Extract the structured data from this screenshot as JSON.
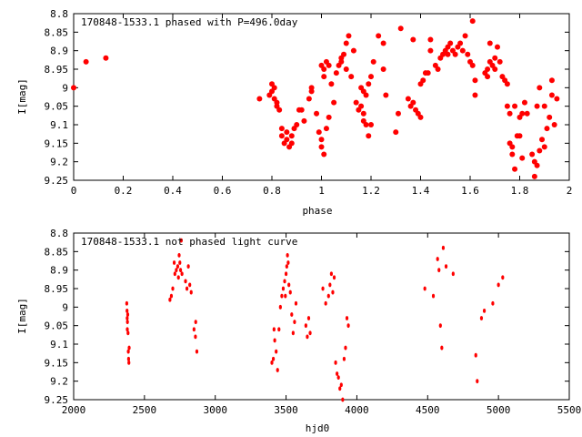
{
  "chart_data": [
    {
      "type": "scatter",
      "title": "170848-1533.1 phased with P=496.0day",
      "xlabel": "phase",
      "ylabel": "I[mag]",
      "xlim": [
        0,
        2
      ],
      "ylim": [
        9.25,
        8.8
      ],
      "y_inverted": true,
      "x_ticks": [
        "0",
        "0.2",
        "0.4",
        "0.6",
        "0.8",
        "1",
        "1.2",
        "1.4",
        "1.6",
        "1.8",
        "2"
      ],
      "y_ticks": [
        "8.8",
        "8.85",
        "8.9",
        "8.95",
        "9",
        "9.05",
        "9.1",
        "9.15",
        "9.2",
        "9.25"
      ],
      "marker_color": "#ff0000",
      "points": [
        [
          0.0,
          9.0
        ],
        [
          0.05,
          8.93
        ],
        [
          0.13,
          8.92
        ],
        [
          0.75,
          9.03
        ],
        [
          0.79,
          9.02
        ],
        [
          0.8,
          8.99
        ],
        [
          0.8,
          9.01
        ],
        [
          0.81,
          9.0
        ],
        [
          0.81,
          9.03
        ],
        [
          0.82,
          9.04
        ],
        [
          0.82,
          9.05
        ],
        [
          0.83,
          9.06
        ],
        [
          0.84,
          9.11
        ],
        [
          0.84,
          9.13
        ],
        [
          0.85,
          9.15
        ],
        [
          0.86,
          9.12
        ],
        [
          0.86,
          9.14
        ],
        [
          0.87,
          9.16
        ],
        [
          0.88,
          9.13
        ],
        [
          0.88,
          9.15
        ],
        [
          0.89,
          9.11
        ],
        [
          0.9,
          9.1
        ],
        [
          0.91,
          9.06
        ],
        [
          0.92,
          9.06
        ],
        [
          0.93,
          9.09
        ],
        [
          0.95,
          9.03
        ],
        [
          0.96,
          9.0
        ],
        [
          0.96,
          9.01
        ],
        [
          0.98,
          9.07
        ],
        [
          0.99,
          9.12
        ],
        [
          1.0,
          9.14
        ],
        [
          1.0,
          9.16
        ],
        [
          1.01,
          9.18
        ],
        [
          1.02,
          9.11
        ],
        [
          1.03,
          9.08
        ],
        [
          1.0,
          8.94
        ],
        [
          1.01,
          8.95
        ],
        [
          1.01,
          8.97
        ],
        [
          1.02,
          8.93
        ],
        [
          1.03,
          8.94
        ],
        [
          1.04,
          8.99
        ],
        [
          1.05,
          9.04
        ],
        [
          1.06,
          8.96
        ],
        [
          1.07,
          8.94
        ],
        [
          1.08,
          8.93
        ],
        [
          1.08,
          8.92
        ],
        [
          1.09,
          8.91
        ],
        [
          1.1,
          8.88
        ],
        [
          1.1,
          8.95
        ],
        [
          1.11,
          8.86
        ],
        [
          1.12,
          8.97
        ],
        [
          1.13,
          8.9
        ],
        [
          1.14,
          9.04
        ],
        [
          1.15,
          9.06
        ],
        [
          1.16,
          9.05
        ],
        [
          1.17,
          9.07
        ],
        [
          1.17,
          9.09
        ],
        [
          1.18,
          9.1
        ],
        [
          1.19,
          9.13
        ],
        [
          1.2,
          9.1
        ],
        [
          1.16,
          9.0
        ],
        [
          1.17,
          9.01
        ],
        [
          1.18,
          9.02
        ],
        [
          1.19,
          8.99
        ],
        [
          1.2,
          8.97
        ],
        [
          1.21,
          8.93
        ],
        [
          1.23,
          8.86
        ],
        [
          1.25,
          8.88
        ],
        [
          1.25,
          8.95
        ],
        [
          1.26,
          9.02
        ],
        [
          1.3,
          9.12
        ],
        [
          1.31,
          9.07
        ],
        [
          1.32,
          8.84
        ],
        [
          1.35,
          9.03
        ],
        [
          1.36,
          9.05
        ],
        [
          1.37,
          9.04
        ],
        [
          1.37,
          8.87
        ],
        [
          1.38,
          9.06
        ],
        [
          1.39,
          9.07
        ],
        [
          1.4,
          9.08
        ],
        [
          1.4,
          8.99
        ],
        [
          1.41,
          8.98
        ],
        [
          1.42,
          8.96
        ],
        [
          1.43,
          8.96
        ],
        [
          1.44,
          8.87
        ],
        [
          1.44,
          8.9
        ],
        [
          1.46,
          8.94
        ],
        [
          1.47,
          8.95
        ],
        [
          1.48,
          8.92
        ],
        [
          1.49,
          8.91
        ],
        [
          1.5,
          8.9
        ],
        [
          1.51,
          8.89
        ],
        [
          1.51,
          8.91
        ],
        [
          1.52,
          8.88
        ],
        [
          1.53,
          8.9
        ],
        [
          1.54,
          8.91
        ],
        [
          1.55,
          8.89
        ],
        [
          1.56,
          8.88
        ],
        [
          1.57,
          8.9
        ],
        [
          1.58,
          8.86
        ],
        [
          1.59,
          8.91
        ],
        [
          1.6,
          8.93
        ],
        [
          1.61,
          8.82
        ],
        [
          1.61,
          8.94
        ],
        [
          1.62,
          8.98
        ],
        [
          1.62,
          9.02
        ],
        [
          1.66,
          8.96
        ],
        [
          1.67,
          8.95
        ],
        [
          1.67,
          8.97
        ],
        [
          1.68,
          8.93
        ],
        [
          1.68,
          8.88
        ],
        [
          1.69,
          8.94
        ],
        [
          1.7,
          8.92
        ],
        [
          1.7,
          8.95
        ],
        [
          1.71,
          8.89
        ],
        [
          1.72,
          8.93
        ],
        [
          1.73,
          8.97
        ],
        [
          1.74,
          8.98
        ],
        [
          1.75,
          8.99
        ],
        [
          1.75,
          9.05
        ],
        [
          1.76,
          9.07
        ],
        [
          1.76,
          9.15
        ],
        [
          1.77,
          9.16
        ],
        [
          1.77,
          9.18
        ],
        [
          1.78,
          9.22
        ],
        [
          1.78,
          9.05
        ],
        [
          1.79,
          9.13
        ],
        [
          1.8,
          9.08
        ],
        [
          1.8,
          9.13
        ],
        [
          1.81,
          9.07
        ],
        [
          1.81,
          9.19
        ],
        [
          1.82,
          9.04
        ],
        [
          1.83,
          9.07
        ],
        [
          1.85,
          9.18
        ],
        [
          1.86,
          9.2
        ],
        [
          1.86,
          9.24
        ],
        [
          1.87,
          9.05
        ],
        [
          1.87,
          9.21
        ],
        [
          1.88,
          9.0
        ],
        [
          1.88,
          9.17
        ],
        [
          1.89,
          9.14
        ],
        [
          1.9,
          9.05
        ],
        [
          1.9,
          9.16
        ],
        [
          1.91,
          9.11
        ],
        [
          1.92,
          9.08
        ],
        [
          1.93,
          8.98
        ],
        [
          1.93,
          9.02
        ],
        [
          1.94,
          9.1
        ],
        [
          1.95,
          9.03
        ]
      ]
    },
    {
      "type": "scatter",
      "title": "170848-1533.1 not phased light curve",
      "xlabel": "hjd0",
      "ylabel": "I[mag]",
      "xlim": [
        2000,
        5500
      ],
      "ylim": [
        9.25,
        8.8
      ],
      "y_inverted": true,
      "x_ticks": [
        "2000",
        "2500",
        "3000",
        "3500",
        "4000",
        "4500",
        "5000",
        "5500"
      ],
      "y_ticks": [
        "8.8",
        "8.85",
        "8.9",
        "8.95",
        "9",
        "9.05",
        "9.1",
        "9.15",
        "9.2",
        "9.25"
      ],
      "marker_color": "#ff0000",
      "points": [
        [
          2375,
          8.99
        ],
        [
          2377,
          9.01
        ],
        [
          2378,
          9.03
        ],
        [
          2379,
          9.06
        ],
        [
          2380,
          9.04
        ],
        [
          2382,
          9.02
        ],
        [
          2384,
          9.07
        ],
        [
          2386,
          9.12
        ],
        [
          2388,
          9.14
        ],
        [
          2390,
          9.15
        ],
        [
          2392,
          9.11
        ],
        [
          2680,
          8.98
        ],
        [
          2690,
          8.97
        ],
        [
          2700,
          8.95
        ],
        [
          2710,
          8.88
        ],
        [
          2715,
          8.91
        ],
        [
          2725,
          8.9
        ],
        [
          2735,
          8.89
        ],
        [
          2740,
          8.92
        ],
        [
          2745,
          8.86
        ],
        [
          2750,
          8.88
        ],
        [
          2755,
          8.9
        ],
        [
          2760,
          8.82
        ],
        [
          2765,
          8.91
        ],
        [
          2790,
          8.93
        ],
        [
          2800,
          8.95
        ],
        [
          2810,
          8.89
        ],
        [
          2820,
          8.94
        ],
        [
          2830,
          8.96
        ],
        [
          2850,
          9.06
        ],
        [
          2860,
          9.08
        ],
        [
          2862,
          9.04
        ],
        [
          2870,
          9.12
        ],
        [
          3400,
          9.15
        ],
        [
          3410,
          9.14
        ],
        [
          3415,
          9.06
        ],
        [
          3420,
          9.09
        ],
        [
          3430,
          9.12
        ],
        [
          3440,
          9.17
        ],
        [
          3450,
          9.06
        ],
        [
          3460,
          9.0
        ],
        [
          3470,
          8.97
        ],
        [
          3480,
          8.95
        ],
        [
          3490,
          8.93
        ],
        [
          3495,
          8.97
        ],
        [
          3500,
          8.91
        ],
        [
          3505,
          8.89
        ],
        [
          3510,
          8.86
        ],
        [
          3515,
          8.88
        ],
        [
          3520,
          8.94
        ],
        [
          3530,
          8.96
        ],
        [
          3540,
          9.02
        ],
        [
          3550,
          9.07
        ],
        [
          3560,
          9.04
        ],
        [
          3570,
          8.99
        ],
        [
          3640,
          9.05
        ],
        [
          3650,
          9.08
        ],
        [
          3660,
          9.03
        ],
        [
          3670,
          9.07
        ],
        [
          3760,
          8.95
        ],
        [
          3780,
          8.99
        ],
        [
          3800,
          8.97
        ],
        [
          3810,
          8.94
        ],
        [
          3820,
          8.91
        ],
        [
          3830,
          8.96
        ],
        [
          3840,
          8.92
        ],
        [
          3850,
          9.15
        ],
        [
          3860,
          9.18
        ],
        [
          3870,
          9.19
        ],
        [
          3880,
          9.22
        ],
        [
          3890,
          9.21
        ],
        [
          3900,
          9.25
        ],
        [
          3910,
          9.14
        ],
        [
          3920,
          9.11
        ],
        [
          3930,
          9.03
        ],
        [
          3940,
          9.05
        ],
        [
          4480,
          8.95
        ],
        [
          4540,
          8.97
        ],
        [
          4570,
          8.87
        ],
        [
          4580,
          8.9
        ],
        [
          4590,
          9.05
        ],
        [
          4600,
          9.11
        ],
        [
          4610,
          8.84
        ],
        [
          4630,
          8.89
        ],
        [
          4680,
          8.91
        ],
        [
          4840,
          9.13
        ],
        [
          4850,
          9.2
        ],
        [
          4880,
          9.03
        ],
        [
          4900,
          9.01
        ],
        [
          4960,
          8.99
        ],
        [
          5000,
          8.94
        ],
        [
          5030,
          8.92
        ]
      ]
    }
  ]
}
